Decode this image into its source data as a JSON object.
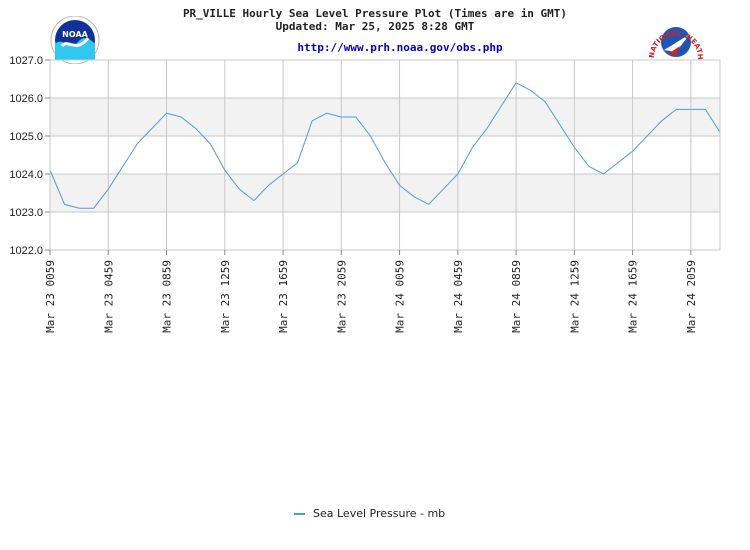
{
  "header": {
    "title": "PR_VILLE Hourly Sea Level Pressure Plot (Times are in GMT)",
    "updated": "Updated: Mar 25, 2025 8:28 GMT",
    "url": "http://www.prh.noaa.gov/obs.php"
  },
  "logos": {
    "left": "NOAA",
    "right_text": "NATIONAL WEATHER SERVICE"
  },
  "colors": {
    "series": "#4d9be8",
    "band": "#f2f2f2",
    "grid": "#c8c8c8"
  },
  "chart_data": {
    "type": "line",
    "title": "PR_VILLE Hourly Sea Level Pressure Plot (Times are in GMT)",
    "ylim": [
      1022.0,
      1027.0
    ],
    "yticks": [
      "1022.0",
      "1023.0",
      "1024.0",
      "1025.0",
      "1026.0",
      "1027.0"
    ],
    "xticks": [
      "Mar 23 0059",
      "Mar 23 0459",
      "Mar 23 0859",
      "Mar 23 1259",
      "Mar 23 1659",
      "Mar 23 2059",
      "Mar 24 0059",
      "Mar 24 0459",
      "Mar 24 0859",
      "Mar 24 1259",
      "Mar 24 1659",
      "Mar 24 2059"
    ],
    "x_start": "Mar 23 0059",
    "x_step_hours": 1,
    "series": [
      {
        "name": "Sea Level Pressure - mb",
        "values": [
          1024.1,
          1023.2,
          1023.1,
          1023.1,
          1023.6,
          1024.2,
          1024.8,
          1025.2,
          1025.6,
          1025.5,
          1025.2,
          1024.8,
          1024.1,
          1023.6,
          1023.3,
          1023.7,
          1024.0,
          1024.3,
          1025.4,
          1025.6,
          1025.5,
          1025.5,
          1025.0,
          1024.3,
          1023.7,
          1023.4,
          1023.2,
          1023.6,
          1024.0,
          1024.7,
          1025.2,
          1025.8,
          1026.4,
          1026.2,
          1025.9,
          1025.3,
          1024.7,
          1024.2,
          1024.0,
          1024.3,
          1024.6,
          1025.0,
          1025.4,
          1025.7,
          1025.7,
          1025.7,
          1025.1
        ]
      }
    ]
  }
}
